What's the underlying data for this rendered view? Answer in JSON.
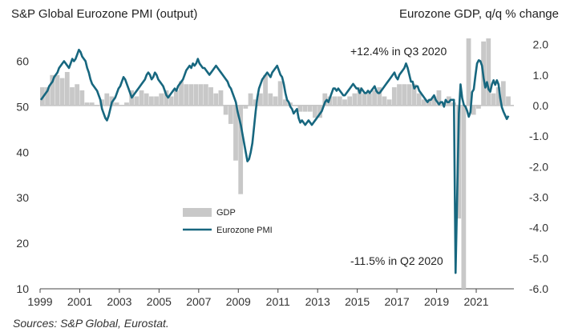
{
  "chart_data": {
    "type": "bar+line",
    "title_left": "S&P Global Eurozone PMI (output)",
    "title_right": "Eurozone GDP, q/q % change",
    "source": "Sources: S&P Global, Eurostat.",
    "x_axis": {
      "range": [
        1999,
        2022.9
      ],
      "tick_labels": [
        "1999",
        "2001",
        "2003",
        "2005",
        "2007",
        "2009",
        "2011",
        "2013",
        "2015",
        "2017",
        "2019",
        "2021"
      ]
    },
    "left_axis": {
      "range": [
        10,
        65
      ],
      "tick_labels": [
        "60",
        "50",
        "40",
        "30",
        "20",
        "10"
      ]
    },
    "right_axis": {
      "range": [
        -6.0,
        2.2
      ],
      "tick_labels": [
        "2.0",
        "1.0",
        "0.0",
        "-1.0",
        "-2.0",
        "-3.0",
        "-4.0",
        "-5.0",
        "-6.0"
      ]
    },
    "legend": {
      "placement": "lower-left-center",
      "gdp_label": "GDP",
      "pmi_label": "Eurozone PMI"
    },
    "colors": {
      "gdp": "#c8c8c8",
      "pmi": "#17677f"
    },
    "annotations": [
      {
        "text": "+12.4% in Q3 2020"
      },
      {
        "text": "-11.5% in Q2 2020"
      }
    ],
    "gdp_quarterly": {
      "start": "1999-Q1",
      "values": [
        0.6,
        0.6,
        1.0,
        1.0,
        0.9,
        1.1,
        0.6,
        0.7,
        0.5,
        0.1,
        0.1,
        0.0,
        0.2,
        0.4,
        0.3,
        0.1,
        0.0,
        0.1,
        0.5,
        0.3,
        0.5,
        0.4,
        0.3,
        0.3,
        0.4,
        0.5,
        0.3,
        0.5,
        0.8,
        0.7,
        0.7,
        0.7,
        0.7,
        0.7,
        0.6,
        0.4,
        0.5,
        -0.3,
        -0.6,
        -1.8,
        -2.9,
        -0.1,
        0.4,
        0.2,
        0.4,
        1.0,
        0.4,
        0.3,
        0.8,
        0.2,
        0.1,
        0.0,
        -0.2,
        -0.2,
        -0.2,
        -0.4,
        -0.4,
        0.4,
        0.3,
        0.3,
        0.3,
        0.2,
        0.3,
        0.4,
        0.6,
        0.4,
        0.4,
        0.5,
        0.6,
        0.3,
        0.2,
        0.6,
        0.7,
        0.7,
        0.7,
        0.7,
        0.4,
        0.2,
        0.2,
        0.3,
        0.5,
        0.1,
        0.3,
        0.1,
        -3.7,
        -11.5,
        12.4,
        -0.3,
        -0.1,
        2.1,
        2.3,
        0.4,
        0.6,
        0.8,
        0.3
      ]
    },
    "pmi_monthly": {
      "start": "1999-01",
      "values": [
        51.5,
        52.0,
        52.5,
        53.0,
        53.5,
        54.5,
        55.0,
        55.5,
        56.5,
        57.0,
        57.5,
        58.5,
        59.0,
        59.5,
        60.0,
        59.5,
        59.0,
        58.5,
        59.5,
        60.5,
        60.0,
        60.5,
        61.5,
        62.5,
        62.0,
        61.0,
        60.5,
        60.0,
        58.5,
        57.5,
        56.0,
        55.0,
        54.5,
        54.0,
        53.5,
        52.5,
        51.5,
        49.5,
        48.5,
        47.5,
        47.0,
        48.0,
        49.5,
        51.0,
        51.5,
        52.0,
        53.0,
        54.0,
        54.5,
        55.5,
        56.5,
        56.0,
        55.0,
        54.0,
        53.0,
        52.0,
        52.5,
        53.0,
        53.5,
        54.0,
        54.5,
        55.0,
        55.5,
        56.0,
        57.0,
        57.5,
        57.0,
        56.0,
        56.5,
        57.5,
        57.0,
        56.0,
        55.5,
        55.0,
        54.5,
        53.5,
        52.5,
        52.0,
        52.5,
        53.0,
        53.5,
        54.0,
        53.5,
        54.5,
        55.0,
        55.5,
        56.0,
        57.0,
        58.0,
        58.5,
        59.0,
        58.5,
        59.5,
        59.0,
        59.5,
        60.5,
        59.5,
        59.0,
        58.5,
        58.5,
        58.0,
        57.5,
        57.0,
        57.5,
        58.0,
        58.5,
        59.0,
        58.5,
        58.0,
        57.5,
        57.0,
        56.5,
        56.0,
        55.5,
        54.5,
        54.0,
        53.0,
        52.0,
        51.0,
        49.0,
        47.5,
        46.0,
        44.0,
        42.0,
        40.0,
        38.0,
        38.5,
        40.0,
        42.0,
        45.5,
        49.0,
        52.0,
        54.0,
        55.0,
        56.0,
        56.5,
        57.0,
        57.5,
        57.0,
        56.5,
        57.5,
        58.0,
        58.5,
        59.0,
        58.0,
        57.0,
        56.5,
        55.0,
        53.0,
        51.5,
        51.0,
        50.0,
        49.5,
        48.5,
        49.0,
        49.5,
        47.5,
        46.5,
        47.0,
        46.5,
        46.0,
        46.5,
        47.0,
        46.5,
        46.0,
        46.5,
        47.0,
        47.5,
        48.0,
        48.5,
        49.0,
        50.0,
        51.0,
        51.5,
        51.0,
        52.0,
        53.0,
        54.0,
        54.0,
        53.5,
        54.0,
        53.5,
        53.0,
        52.5,
        52.5,
        53.0,
        53.5,
        54.0,
        54.5,
        55.0,
        54.5,
        54.0,
        54.0,
        53.0,
        54.0,
        53.5,
        53.0,
        53.0,
        53.5,
        53.0,
        53.5,
        54.0,
        54.5,
        53.5,
        53.0,
        53.0,
        53.5,
        54.0,
        54.5,
        55.0,
        55.5,
        56.0,
        56.5,
        57.0,
        57.5,
        56.5,
        56.0,
        57.0,
        57.5,
        58.0,
        58.5,
        59.5,
        58.5,
        57.0,
        55.5,
        55.5,
        54.0,
        54.5,
        54.5,
        53.5,
        53.0,
        52.5,
        52.0,
        51.5,
        51.0,
        51.5,
        51.5,
        52.0,
        52.5,
        51.5,
        51.0,
        50.5,
        51.0,
        51.0,
        50.0,
        51.5,
        51.0,
        51.0,
        51.5,
        51.5,
        51.5,
        13.5,
        31.0,
        48.5,
        54.9,
        51.9,
        50.4,
        50.0,
        49.1,
        47.8,
        48.8,
        53.2,
        53.8,
        56.8,
        59.5,
        60.2,
        60.0,
        59.0,
        56.2,
        54.2,
        55.4,
        53.8,
        53.3,
        54.9,
        55.8,
        54.8,
        55.8,
        54.9,
        52.0,
        49.9,
        48.9,
        48.1,
        47.3,
        48.0
      ]
    }
  }
}
